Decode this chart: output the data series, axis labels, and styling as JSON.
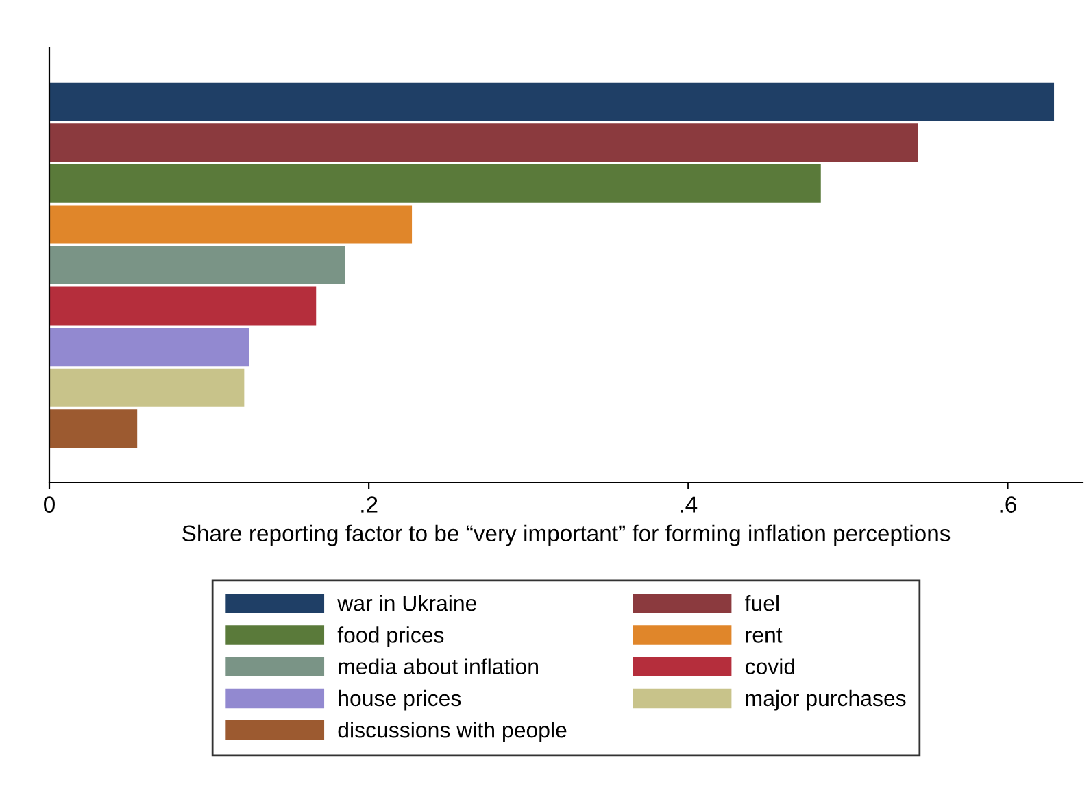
{
  "chart_data": {
    "type": "bar",
    "orientation": "horizontal",
    "stacked": true,
    "categories": [
      null,
      null,
      null,
      null,
      null,
      null,
      null,
      null,
      null
    ],
    "xlabel": "Share reporting factor to be “very important” for forming inflation perceptions",
    "xlim": [
      0,
      0.647
    ],
    "xticks": [
      0,
      {
        "value": 0.2,
        "label": ".2"
      },
      {
        "value": 0.4,
        "label": ".4"
      },
      {
        "value": 0.6,
        "label": ".6"
      }
    ],
    "grid": false,
    "legend": "bottom",
    "series": [
      {
        "name": "war in Ukraine",
        "color": "#1f3f66",
        "values": [
          0.629,
          null,
          null,
          null,
          null,
          null,
          null,
          null,
          null
        ]
      },
      {
        "name": "fuel",
        "color": "#8b3a3e",
        "values": [
          null,
          0.544,
          null,
          null,
          null,
          null,
          null,
          null,
          null
        ]
      },
      {
        "name": "food prices",
        "color": "#5a7a3a",
        "values": [
          null,
          null,
          0.483,
          null,
          null,
          null,
          null,
          null,
          null
        ]
      },
      {
        "name": "rent",
        "color": "#e0862a",
        "values": [
          null,
          null,
          null,
          0.227,
          null,
          null,
          null,
          null,
          null
        ]
      },
      {
        "name": "media about inflation",
        "color": "#7a9486",
        "values": [
          null,
          null,
          null,
          null,
          0.185,
          null,
          null,
          null,
          null
        ]
      },
      {
        "name": "covid",
        "color": "#b52e3c",
        "values": [
          null,
          null,
          null,
          null,
          null,
          0.167,
          null,
          null,
          null
        ]
      },
      {
        "name": "house prices",
        "color": "#9289d0",
        "values": [
          null,
          null,
          null,
          null,
          null,
          null,
          0.125,
          null,
          null
        ]
      },
      {
        "name": "major purchases",
        "color": "#c8c38a",
        "values": [
          null,
          null,
          null,
          null,
          null,
          null,
          null,
          0.122,
          null
        ]
      },
      {
        "name": "discussions with people",
        "color": "#9c5a30",
        "values": [
          null,
          null,
          null,
          null,
          null,
          null,
          null,
          null,
          0.055
        ]
      }
    ]
  }
}
